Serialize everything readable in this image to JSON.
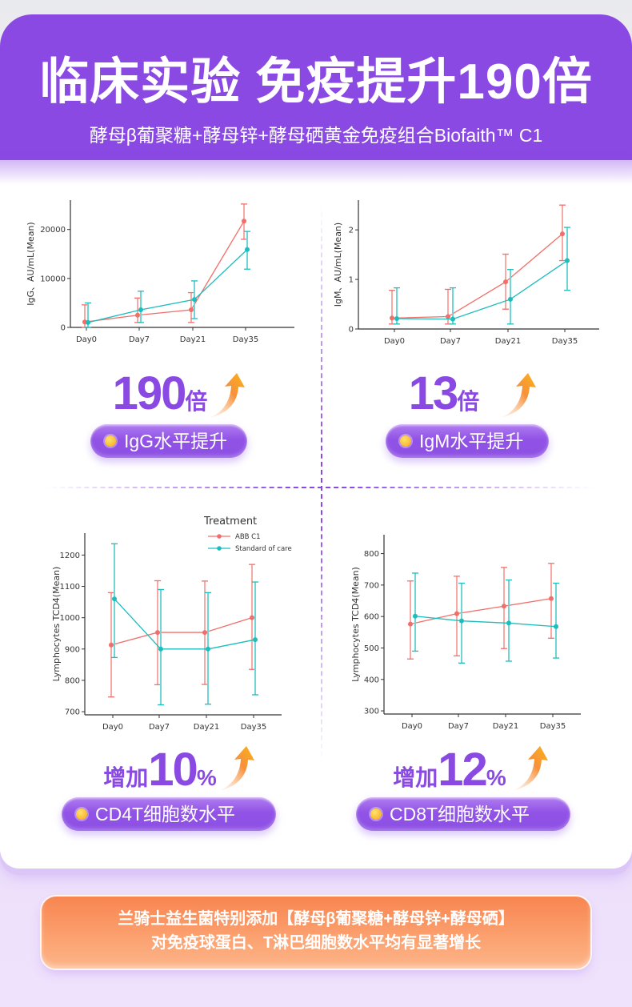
{
  "header": {
    "title": "临床实验 免疫提升190倍",
    "subtitle": "酵母β葡聚糖+酵母锌+酵母硒黄金免疫组合Biofaith™ C1"
  },
  "colors": {
    "brand_purple": "#8a49e3",
    "abb_series": "#f06f6a",
    "soc_series": "#1bbdbd",
    "arrow_orange": "#f9a21b",
    "banner_orange": "#f88550"
  },
  "stats": [
    {
      "number": "190",
      "unit": "倍",
      "prefix": "",
      "label": "IgG水平提升",
      "icon": "up-arrow-icon"
    },
    {
      "number": "13",
      "unit": "倍",
      "prefix": "",
      "label": "IgM水平提升",
      "icon": "up-arrow-icon"
    },
    {
      "number": "10",
      "unit": "%",
      "prefix": "增加",
      "label": "CD4T细胞数水平",
      "icon": "up-arrow-icon"
    },
    {
      "number": "12",
      "unit": "%",
      "prefix": "增加",
      "label": "CD8T细胞数水平",
      "icon": "up-arrow-icon"
    }
  ],
  "banner": {
    "line1": "兰骑士益生菌特别添加【酵母β葡聚糖+酵母锌+酵母硒】",
    "line2": "对免疫球蛋白、T淋巴细胞数水平均有显著增长"
  },
  "chart_data": [
    {
      "type": "line",
      "id": "igg",
      "title": "",
      "xlabel": "",
      "ylabel": "IgG、AU/mL(Mean)",
      "categories": [
        "Day0",
        "Day7",
        "Day21",
        "Day35"
      ],
      "ylim": [
        0,
        26000
      ],
      "yticks": [
        0,
        10000,
        20000
      ],
      "ytick_labels": [
        "0",
        "10000",
        "20000"
      ],
      "grid": false,
      "series": [
        {
          "name": "ABB C1",
          "values": [
            1100,
            2500,
            3600,
            21700
          ],
          "err_low": [
            0,
            1000,
            1000,
            18000
          ],
          "err_high": [
            4600,
            6000,
            7100,
            25200
          ]
        },
        {
          "name": "Standard of care",
          "values": [
            1000,
            3600,
            5700,
            15900
          ],
          "err_low": [
            0,
            1000,
            1800,
            11900
          ],
          "err_high": [
            5000,
            7400,
            9500,
            19600
          ]
        }
      ]
    },
    {
      "type": "line",
      "id": "igm",
      "title": "",
      "xlabel": "",
      "ylabel": "IgM、AU/mL(Mean)",
      "categories": [
        "Day0",
        "Day7",
        "Day21",
        "Day35"
      ],
      "ylim": [
        0,
        2.6
      ],
      "yticks": [
        0,
        1,
        2
      ],
      "ytick_labels": [
        "0",
        "1",
        "2"
      ],
      "grid": false,
      "series": [
        {
          "name": "ABB C1",
          "values": [
            0.22,
            0.25,
            0.95,
            1.92
          ],
          "err_low": [
            0.1,
            0.1,
            0.4,
            1.38
          ],
          "err_high": [
            0.78,
            0.8,
            1.51,
            2.5
          ]
        },
        {
          "name": "Standard of care",
          "values": [
            0.21,
            0.2,
            0.6,
            1.38
          ],
          "err_low": [
            0.1,
            0.1,
            0.1,
            0.78
          ],
          "err_high": [
            0.83,
            0.83,
            1.2,
            2.05
          ]
        }
      ]
    },
    {
      "type": "line",
      "id": "cd4",
      "title": "",
      "xlabel": "",
      "ylabel": "Lymphocytes TCD4(Mean)",
      "categories": [
        "Day0",
        "Day7",
        "Day21",
        "Day35"
      ],
      "ylim": [
        690,
        1270
      ],
      "yticks": [
        700,
        800,
        900,
        1000,
        1100,
        1200
      ],
      "ytick_labels": [
        "700",
        "800",
        "900",
        "1000",
        "1100",
        "1200"
      ],
      "grid": false,
      "legend": {
        "title": "Treatment",
        "position": "top-right",
        "entries": [
          "ABB C1",
          "Standard of care"
        ]
      },
      "series": [
        {
          "name": "ABB C1",
          "values": [
            913,
            953,
            953,
            1000
          ],
          "err_low": [
            747,
            786,
            787,
            835
          ],
          "err_high": [
            1080,
            1118,
            1117,
            1170
          ]
        },
        {
          "name": "Standard of care",
          "values": [
            1060,
            900,
            900,
            930
          ],
          "err_low": [
            873,
            722,
            724,
            754
          ],
          "err_high": [
            1236,
            1090,
            1080,
            1114
          ]
        }
      ]
    },
    {
      "type": "line",
      "id": "cd8",
      "title": "",
      "xlabel": "",
      "ylabel": "Lymphocytes TCD4(Mean)",
      "categories": [
        "Day0",
        "Day7",
        "Day21",
        "Day35"
      ],
      "ylim": [
        290,
        860
      ],
      "yticks": [
        300,
        400,
        500,
        600,
        700,
        800
      ],
      "ytick_labels": [
        "300",
        "400",
        "500",
        "600",
        "700",
        "800"
      ],
      "grid": false,
      "series": [
        {
          "name": "ABB C1",
          "values": [
            576,
            609,
            633,
            657
          ],
          "err_low": [
            465,
            475,
            498,
            531
          ],
          "err_high": [
            713,
            728,
            756,
            769
          ]
        },
        {
          "name": "Standard of care",
          "values": [
            601,
            586,
            579,
            568
          ],
          "err_low": [
            490,
            452,
            458,
            468
          ],
          "err_high": [
            738,
            706,
            716,
            706
          ]
        }
      ]
    }
  ]
}
